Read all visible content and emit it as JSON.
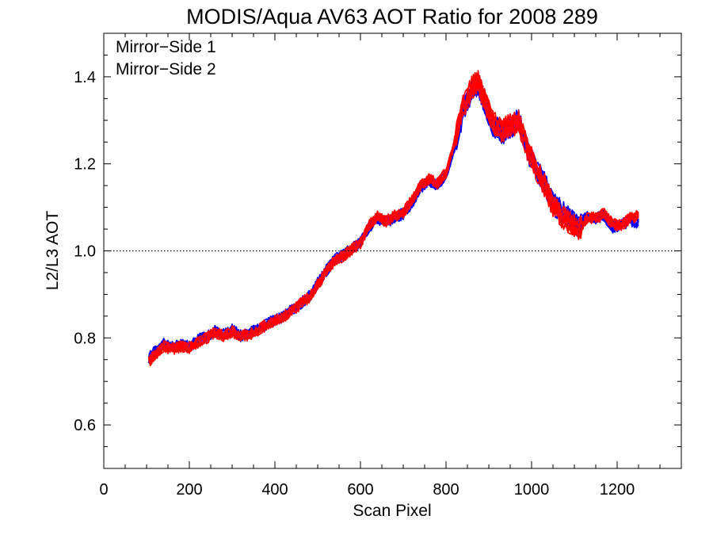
{
  "chart_data": {
    "type": "line",
    "title": "MODIS/Aqua AV63 AOT Ratio for 2008 289",
    "xlabel": "Scan Pixel",
    "ylabel": "L2/L3 AOT",
    "xlim": [
      0,
      1350
    ],
    "ylim": [
      0.5,
      1.5
    ],
    "x_ticks": [
      0,
      200,
      400,
      600,
      800,
      1000,
      1200
    ],
    "x_tick_labels": [
      "0",
      "200",
      "400",
      "600",
      "800",
      "1000",
      "1200"
    ],
    "y_ticks": [
      0.6,
      0.8,
      1.0,
      1.2,
      1.4
    ],
    "y_tick_labels": [
      "0.6",
      "0.8",
      "1.0",
      "1.2",
      "1.4"
    ],
    "reference_line": {
      "y": 1.0,
      "style": "dotted",
      "color": "#000000"
    },
    "legend_position": "top-left",
    "grid": false,
    "series": [
      {
        "name": "Mirror−Side 1",
        "color": "#0000ff",
        "lines": 10,
        "x": [
          105,
          120,
          140,
          160,
          180,
          200,
          220,
          240,
          260,
          280,
          300,
          320,
          340,
          360,
          380,
          400,
          420,
          440,
          460,
          480,
          500,
          520,
          540,
          560,
          580,
          600,
          620,
          640,
          660,
          680,
          700,
          720,
          740,
          760,
          780,
          800,
          820,
          840,
          860,
          875,
          890,
          910,
          930,
          950,
          970,
          990,
          1010,
          1030,
          1050,
          1070,
          1090,
          1110,
          1130,
          1150,
          1170,
          1190,
          1210,
          1230,
          1250
        ],
        "values": [
          0.755,
          0.768,
          0.785,
          0.778,
          0.785,
          0.78,
          0.795,
          0.805,
          0.815,
          0.808,
          0.818,
          0.805,
          0.81,
          0.82,
          0.832,
          0.84,
          0.85,
          0.865,
          0.88,
          0.895,
          0.925,
          0.955,
          0.98,
          0.99,
          1.005,
          1.02,
          1.055,
          1.075,
          1.065,
          1.078,
          1.085,
          1.11,
          1.145,
          1.16,
          1.15,
          1.175,
          1.24,
          1.32,
          1.37,
          1.385,
          1.34,
          1.29,
          1.27,
          1.285,
          1.3,
          1.23,
          1.19,
          1.155,
          1.11,
          1.09,
          1.07,
          1.055,
          1.08,
          1.075,
          1.08,
          1.055,
          1.06,
          1.07,
          1.065
        ]
      },
      {
        "name": "Mirror−Side 2",
        "color": "#ff0000",
        "lines": 10,
        "x": [
          105,
          120,
          140,
          160,
          180,
          200,
          220,
          240,
          260,
          280,
          300,
          320,
          340,
          360,
          380,
          400,
          420,
          440,
          460,
          480,
          500,
          520,
          540,
          560,
          580,
          600,
          620,
          640,
          660,
          680,
          700,
          720,
          740,
          760,
          780,
          800,
          820,
          840,
          860,
          875,
          890,
          910,
          930,
          950,
          970,
          990,
          1010,
          1030,
          1050,
          1070,
          1090,
          1110,
          1130,
          1150,
          1170,
          1190,
          1210,
          1230,
          1250
        ],
        "values": [
          0.745,
          0.762,
          0.78,
          0.775,
          0.78,
          0.778,
          0.79,
          0.8,
          0.812,
          0.805,
          0.815,
          0.803,
          0.808,
          0.818,
          0.83,
          0.838,
          0.848,
          0.862,
          0.878,
          0.893,
          0.922,
          0.952,
          0.978,
          0.988,
          1.003,
          1.018,
          1.058,
          1.078,
          1.068,
          1.08,
          1.088,
          1.115,
          1.15,
          1.165,
          1.155,
          1.18,
          1.25,
          1.33,
          1.375,
          1.39,
          1.345,
          1.295,
          1.275,
          1.29,
          1.295,
          1.235,
          1.19,
          1.15,
          1.105,
          1.08,
          1.065,
          1.05,
          1.075,
          1.075,
          1.085,
          1.06,
          1.06,
          1.075,
          1.08
        ]
      }
    ]
  }
}
